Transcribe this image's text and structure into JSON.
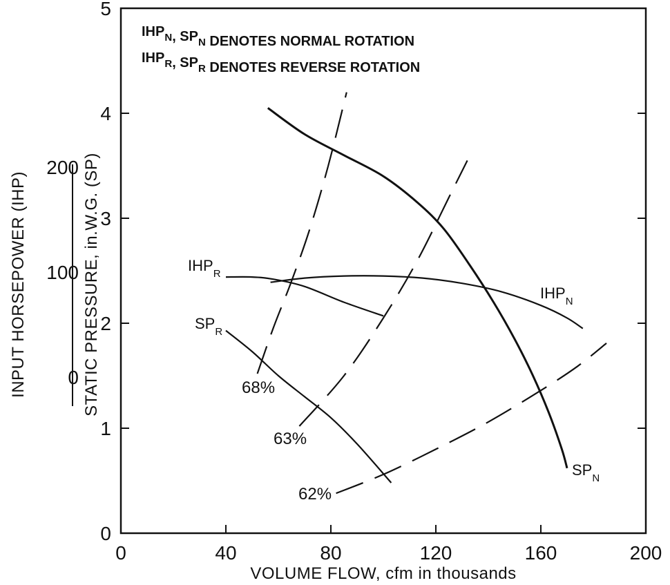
{
  "chart_data": {
    "type": "line",
    "xlabel": "VOLUME FLOW, cfm in thousands",
    "ylabel": "STATIC PRESSURE, in.W.G. (SP)",
    "y2label": "INPUT HORSEPOWER (IHP)",
    "xlim": [
      0,
      200
    ],
    "ylim": [
      0,
      5
    ],
    "x_ticks": [
      "0",
      "40",
      "80",
      "120",
      "160",
      "200"
    ],
    "y_ticks": [
      "0",
      "1",
      "2",
      "3",
      "4",
      "5"
    ],
    "y2_ticks": [
      "0",
      "100",
      "200"
    ],
    "grid": false,
    "notes": [
      {
        "part1": "IHP",
        "sub1": "N",
        "mid": ", SP",
        "sub2": "N",
        "rest": " DENOTES NORMAL ROTATION"
      },
      {
        "part1": "IHP",
        "sub1": "R",
        "mid": ", SP",
        "sub2": "R",
        "rest": " DENOTES REVERSE ROTATION"
      }
    ],
    "series": [
      {
        "name": "SP_N",
        "label": "SP",
        "sub": "N",
        "style": "solid",
        "x": [
          56,
          70,
          85,
          100,
          113,
          123,
          133,
          142,
          150,
          157,
          163,
          168,
          170
        ],
        "y": [
          4.05,
          3.8,
          3.6,
          3.4,
          3.15,
          2.9,
          2.55,
          2.2,
          1.85,
          1.5,
          1.15,
          0.8,
          0.62
        ]
      },
      {
        "name": "IHP_N",
        "label": "IHP",
        "sub": "N",
        "style": "solid",
        "x": [
          57,
          70,
          85,
          100,
          115,
          130,
          145,
          160,
          170,
          176
        ],
        "y": [
          2.39,
          2.43,
          2.45,
          2.45,
          2.43,
          2.38,
          2.3,
          2.17,
          2.05,
          1.95
        ]
      },
      {
        "name": "IHP_R",
        "label": "IHP",
        "sub": "R",
        "style": "solid",
        "x": [
          40,
          50,
          58,
          70,
          85,
          100
        ],
        "y": [
          2.44,
          2.44,
          2.42,
          2.35,
          2.2,
          2.07
        ]
      },
      {
        "name": "SP_R",
        "label": "SP",
        "sub": "R",
        "style": "solid",
        "x": [
          40,
          50,
          60,
          70,
          80,
          90,
          103
        ],
        "y": [
          1.93,
          1.73,
          1.5,
          1.3,
          1.1,
          0.85,
          0.48
        ]
      },
      {
        "name": "68%",
        "label": "68%",
        "style": "dashed",
        "x": [
          52,
          58,
          65,
          72,
          79,
          86
        ],
        "y": [
          1.52,
          1.95,
          2.4,
          2.9,
          3.5,
          4.2
        ]
      },
      {
        "name": "63%",
        "label": "63%",
        "style": "dashed",
        "x": [
          68,
          85,
          100,
          113,
          125,
          132
        ],
        "y": [
          1.02,
          1.5,
          2.05,
          2.6,
          3.2,
          3.55
        ]
      },
      {
        "name": "62%",
        "label": "62%",
        "style": "dashed",
        "x": [
          82,
          100,
          120,
          140,
          160,
          174,
          185
        ],
        "y": [
          0.38,
          0.56,
          0.8,
          1.06,
          1.36,
          1.59,
          1.81
        ]
      }
    ]
  }
}
